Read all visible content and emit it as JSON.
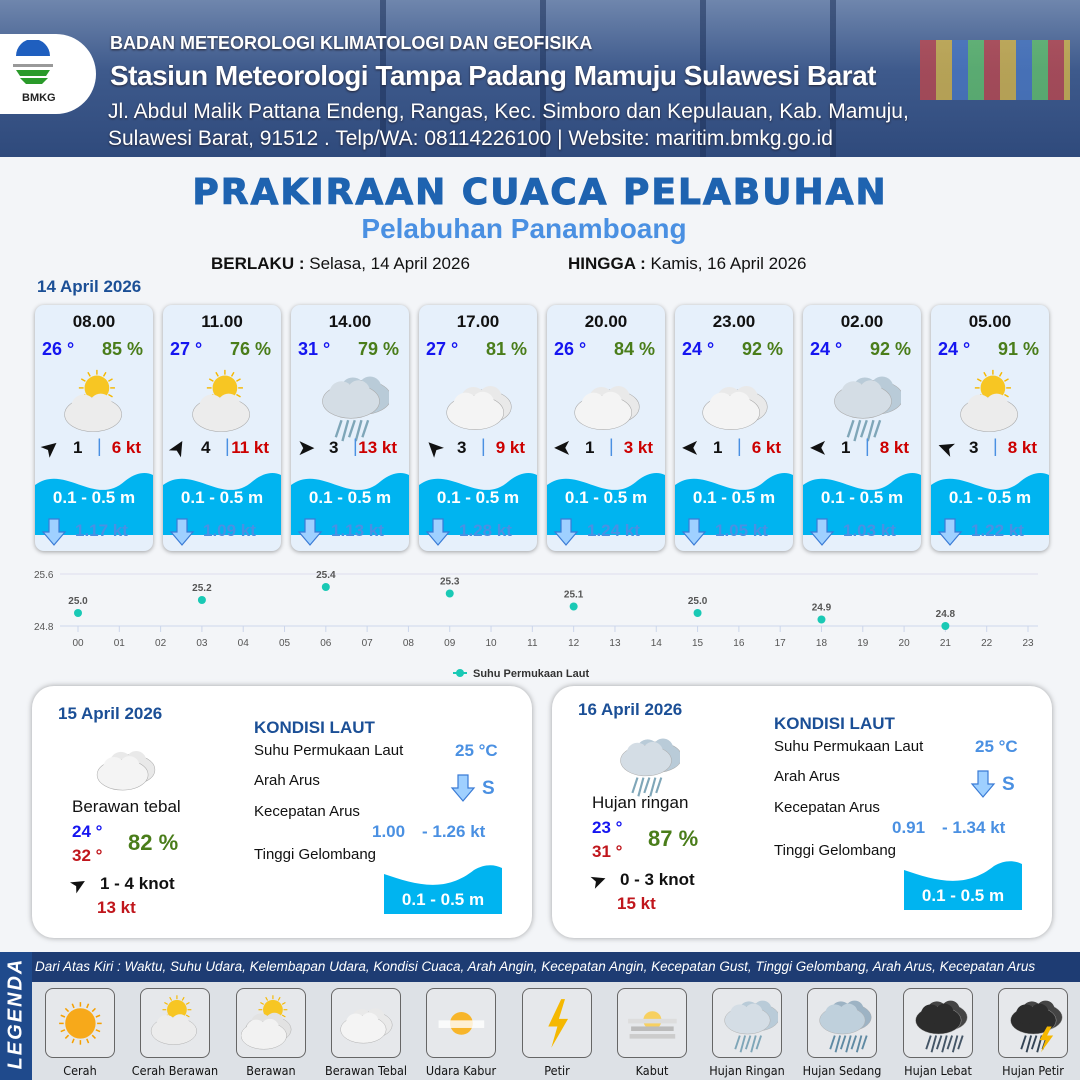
{
  "header": {
    "org": "BADAN METEOROLOGI KLIMATOLOGI DAN GEOFISIKA",
    "station": "Stasiun Meteorologi Tampa Padang Mamuju Sulawesi Barat",
    "address_line1": "Jl. Abdul Malik Pattana Endeng, Rangas, Kec. Simboro dan Kepulauan, Kab. Mamuju,",
    "address_line2": "Sulawesi Barat, 91512 . Telp/WA: 08114226100 | Website: maritim.bmkg.go.id",
    "logo_text": "BMKG"
  },
  "title": "PRAKIRAAN CUACA PELABUHAN",
  "subtitle": "Pelabuhan Panamboang",
  "validity": {
    "from_label": "BERLAKU :",
    "from": "Selasa, 14 April 2026",
    "to_label": "HINGGA :",
    "to": "Kamis, 16 April 2026"
  },
  "day1": {
    "date": "14 April 2026",
    "cards": [
      {
        "time": "08.00",
        "temp": "26 °",
        "rh": "85 %",
        "icon": "cerah-berawan",
        "wind_dir_deg": -40,
        "wind": "1",
        "gust": "6 kt",
        "wave": "0.1 - 0.5 m",
        "current": "1.17 kt"
      },
      {
        "time": "11.00",
        "temp": "27 °",
        "rh": "76 %",
        "icon": "cerah-berawan",
        "wind_dir_deg": -60,
        "wind": "4",
        "gust": "11 kt",
        "wave": "0.1 - 0.5 m",
        "current": "1.09 kt"
      },
      {
        "time": "14.00",
        "temp": "31 °",
        "rh": "79 %",
        "icon": "hujan-ringan",
        "wind_dir_deg": 0,
        "wind": "3",
        "gust": "13 kt",
        "wave": "0.1 - 0.5 m",
        "current": "1.13 kt"
      },
      {
        "time": "17.00",
        "temp": "27 °",
        "rh": "81 %",
        "icon": "berawan-tebal",
        "wind_dir_deg": 225,
        "wind": "3",
        "gust": "9 kt",
        "wave": "0.1 - 0.5 m",
        "current": "1.28 kt"
      },
      {
        "time": "20.00",
        "temp": "26 °",
        "rh": "84 %",
        "icon": "berawan-tebal",
        "wind_dir_deg": 180,
        "wind": "1",
        "gust": "3 kt",
        "wave": "0.1 - 0.5 m",
        "current": "1.24 kt"
      },
      {
        "time": "23.00",
        "temp": "24 °",
        "rh": "92 %",
        "icon": "berawan-tebal",
        "wind_dir_deg": 180,
        "wind": "1",
        "gust": "6 kt",
        "wave": "0.1 - 0.5 m",
        "current": "1.05 kt"
      },
      {
        "time": "02.00",
        "temp": "24 °",
        "rh": "92 %",
        "icon": "hujan-ringan",
        "wind_dir_deg": 180,
        "wind": "1",
        "gust": "8 kt",
        "wave": "0.1 - 0.5 m",
        "current": "1.03 kt"
      },
      {
        "time": "05.00",
        "temp": "24 °",
        "rh": "91 %",
        "icon": "cerah-berawan",
        "wind_dir_deg": 200,
        "wind": "3",
        "gust": "8 kt",
        "wave": "0.1 - 0.5 m",
        "current": "1.22 kt"
      }
    ]
  },
  "chart_data": {
    "type": "scatter",
    "x_ticks": [
      "00",
      "01",
      "02",
      "03",
      "04",
      "05",
      "06",
      "07",
      "08",
      "09",
      "10",
      "11",
      "12",
      "13",
      "14",
      "15",
      "16",
      "17",
      "18",
      "19",
      "20",
      "21",
      "22",
      "23"
    ],
    "x": [
      "00",
      "03",
      "06",
      "09",
      "12",
      "15",
      "18",
      "21"
    ],
    "y": [
      25.0,
      25.2,
      25.4,
      25.3,
      25.1,
      25.0,
      24.9,
      24.8
    ],
    "labels": [
      "25.0",
      "25.2",
      "25.4",
      "25.3",
      "25.1",
      "25.0",
      "24.9",
      "24.8"
    ],
    "ylim": [
      24.8,
      25.6
    ],
    "y_ticks": [
      "25.6",
      "24.8"
    ],
    "series_name": "Suhu Permukaan Laut",
    "color": "#19c9b5",
    "legend": "bottom",
    "grid": true
  },
  "panels": [
    {
      "date": "15 April 2026",
      "icon": "berawan-tebal",
      "condition": "Berawan tebal",
      "tmin": "24 °",
      "tmax": "32 °",
      "rh": "82 %",
      "wind_dir_deg": -30,
      "wind": "1  - 4 knot",
      "gust": "13 kt",
      "sea_title": "KONDISI LAUT",
      "sst_label": "Suhu Permukaan Laut",
      "sst": "25 °C",
      "dir_label": "Arah Arus",
      "dir": "S",
      "speed_label": "Kecepatan Arus",
      "speed_min": "1.00",
      "speed_max": "- 1.26 kt",
      "wave_label": "Tinggi Gelombang",
      "wave": "0.1 - 0.5 m"
    },
    {
      "date": "16 April 2026",
      "icon": "hujan-ringan",
      "condition": "Hujan ringan",
      "tmin": "23 °",
      "tmax": "31 °",
      "rh": "87 %",
      "wind_dir_deg": -20,
      "wind": "0  - 3 knot",
      "gust": "15 kt",
      "sea_title": "KONDISI LAUT",
      "sst_label": "Suhu Permukaan Laut",
      "sst": "25 °C",
      "dir_label": "Arah Arus",
      "dir": "S",
      "speed_label": "Kecepatan Arus",
      "speed_min": "0.91",
      "speed_max": "- 1.34 kt",
      "wave_label": "Tinggi Gelombang",
      "wave": "0.1 - 0.5 m"
    }
  ],
  "legend": {
    "title": "LEGENDA",
    "description": "Dari Atas Kiri : Waktu, Suhu Udara, Kelembapan Udara, Kondisi Cuaca, Arah Angin, Kecepatan Angin, Kecepatan Gust, Tinggi Gelombang, Arah Arus, Kecepatan Arus",
    "items": [
      {
        "label": "Cerah",
        "icon": "cerah"
      },
      {
        "label": "Cerah Berawan",
        "icon": "cerah-berawan"
      },
      {
        "label": "Berawan",
        "icon": "berawan"
      },
      {
        "label": "Berawan Tebal",
        "icon": "berawan-tebal"
      },
      {
        "label": "Udara Kabur",
        "icon": "udara-kabur"
      },
      {
        "label": "Petir",
        "icon": "petir"
      },
      {
        "label": "Kabut",
        "icon": "kabut"
      },
      {
        "label": "Hujan Ringan",
        "icon": "hujan-ringan"
      },
      {
        "label": "Hujan Sedang",
        "icon": "hujan-sedang"
      },
      {
        "label": "Hujan Lebat",
        "icon": "hujan-lebat"
      },
      {
        "label": "Hujan Petir",
        "icon": "hujan-petir"
      }
    ]
  },
  "colors": {
    "wave": "#00b4f0",
    "title": "#1e63b0",
    "temp": "#1515f0",
    "humidity": "#4a7d1a",
    "gust": "#c00000",
    "current": "#4a90e2"
  }
}
